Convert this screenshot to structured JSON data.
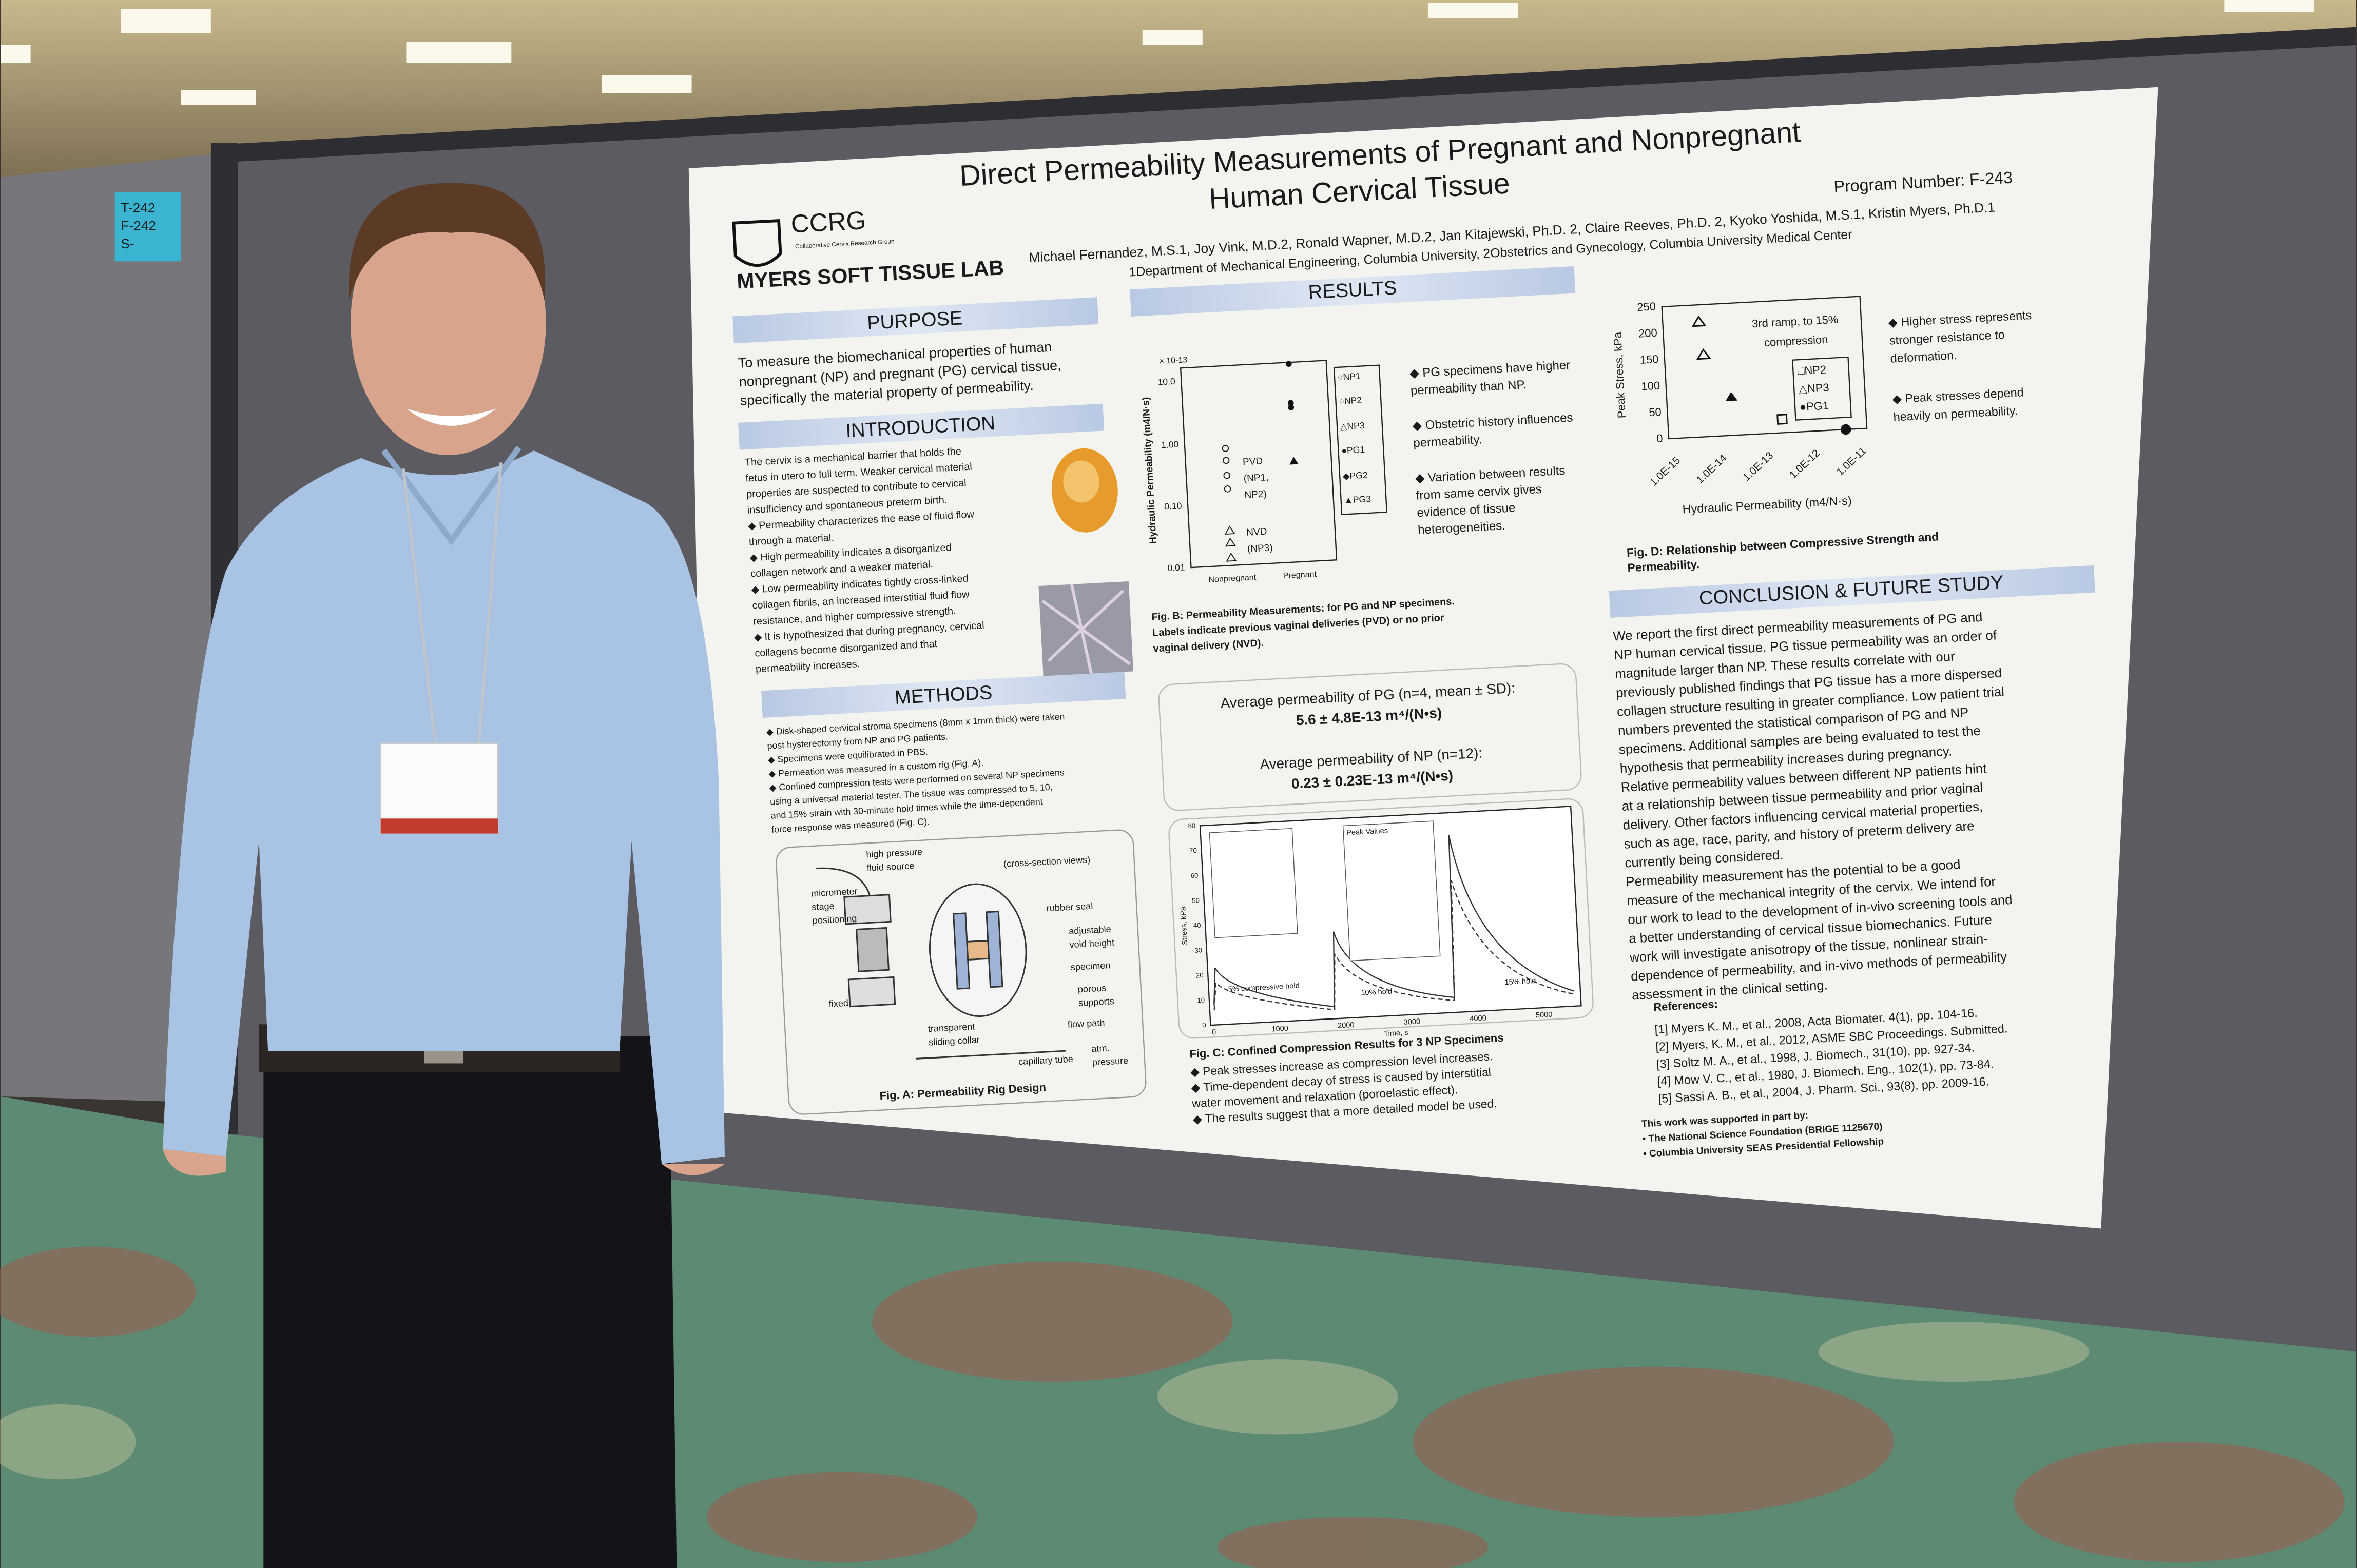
{
  "sticky_note": [
    "T-242",
    "F-242",
    "S-"
  ],
  "poster": {
    "title": [
      "Direct Permeability Measurements of Pregnant and Nonpregnant",
      "Human Cervical Tissue"
    ],
    "program_number": "Program Number: F-243",
    "logo_ccrg": "CCRG",
    "logo_ccrg_sub": "Collaborative Cervix Research Group",
    "logo_lab": "MYERS SOFT TISSUE LAB",
    "authors": "Michael Fernandez, M.S.1, Joy Vink, M.D.2, Ronald Wapner, M.D.2, Jan Kitajewski, Ph.D. 2, Claire Reeves, Ph.D. 2, Kyoko Yoshida, M.S.1, Kristin Myers, Ph.D.1",
    "affiliations": "1Department of Mechanical Engineering, Columbia University, 2Obstetrics and Gynecology, Columbia University Medical Center",
    "purpose": {
      "heading": "PURPOSE",
      "lines": [
        "To measure the biomechanical properties of human",
        "nonpregnant (NP) and pregnant (PG) cervical tissue,",
        "specifically the material property of permeability."
      ]
    },
    "introduction": {
      "heading": "INTRODUCTION",
      "lines": [
        "The cervix is a mechanical barrier that holds the",
        "fetus in utero to full term. Weaker cervical material",
        "properties are suspected to contribute to cervical",
        "insufficiency and spontaneous preterm birth.",
        "◆ Permeability characterizes the ease of fluid flow",
        "through a material.",
        "◆ High permeability indicates a disorganized",
        "collagen network and a weaker material.",
        "◆ Low permeability indicates tightly cross-linked",
        "collagen fibrils, an increased interstitial fluid flow",
        "resistance, and higher compressive strength.",
        "◆ It is hypothesized that during pregnancy, cervical",
        "collagens become disorganized and that",
        "permeability increases."
      ]
    },
    "methods": {
      "heading": "METHODS",
      "lines": [
        "◆ Disk-shaped cervical stroma specimens (8mm x 1mm thick) were taken",
        "post hysterectomy from NP and PG patients.",
        "◆ Specimens were equilibrated in PBS.",
        "◆ Permeation was measured in a custom rig (Fig. A).",
        "◆ Confined compression tests were performed on several NP specimens",
        "using a universal material tester. The tissue was compressed to 5, 10,",
        "and 15% strain with 30-minute hold times while the time-dependent",
        "force response was measured (Fig. C)."
      ]
    },
    "fig_a": {
      "labels": [
        "high pressure",
        "fluid source",
        "(cross-section views)",
        "micrometer",
        "stage",
        "positioning",
        "rubber seal",
        "adjustable",
        "void height",
        "specimen",
        "porous",
        "supports",
        "flow path",
        "fixed",
        "transparent",
        "sliding collar",
        "atm.",
        "pressure",
        "capillary tube"
      ],
      "caption": "Fig. A: Permeability Rig Design"
    },
    "results": {
      "heading": "RESULTS",
      "bullets": [
        [
          "◆ PG specimens have higher",
          "permeability than NP."
        ],
        [
          "◆ Obstetric history influences",
          "permeability."
        ],
        [
          "◆ Variation between results",
          "from same cervix gives",
          "evidence of tissue",
          "heterogeneities."
        ]
      ]
    },
    "fig_b": {
      "multiplier": "× 10-13",
      "y_label": "Hydraulic Permeability (m4/N·s)",
      "y_ticks": [
        "10.0",
        "1.00",
        "0.10",
        "0.01"
      ],
      "x_labels": [
        "Nonpregnant",
        "Pregnant"
      ],
      "annotations": [
        "PVD",
        "(NP1,",
        "NP2)",
        "NVD",
        "(NP3)"
      ],
      "legend": [
        "○NP1",
        "○NP2",
        "△NP3",
        "●PG1",
        "◆PG2",
        "▲PG3"
      ],
      "caption": [
        "Fig. B: Permeability Measurements: for PG and NP specimens.",
        "Labels indicate previous vaginal deliveries (PVD) or no prior",
        "vaginal delivery (NVD)."
      ]
    },
    "averages": [
      "Average permeability of PG (n=4, mean ± SD):",
      "5.6 ± 4.8E-13 m⁴/(N•s)",
      "Average permeability of NP (n=12):",
      "0.23 ± 0.23E-13 m⁴/(N•s)"
    ],
    "fig_c": {
      "y_label": "Stress, kPa",
      "x_label": "Time, s",
      "y_ticks": [
        80,
        70,
        60,
        50,
        40,
        30,
        20,
        10,
        0
      ],
      "x_ticks": [
        0,
        1000,
        2000,
        3000,
        4000,
        5000
      ],
      "annotations": [
        "Peak Values",
        "5% compressive hold",
        "10% hold",
        "15% hold"
      ],
      "caption": "Fig. C: Confined Compression Results for 3 NP Specimens",
      "bullets": [
        "◆ Peak stresses increase as compression level increases.",
        "◆ Time-dependent decay of stress is caused by interstitial",
        "water movement and relaxation (poroelastic effect).",
        "◆ The results suggest that a more detailed model be used."
      ]
    },
    "fig_d": {
      "y_label": "Peak Stress, kPa",
      "x_label": "Hydraulic Permeability (m4/N·s)",
      "y_ticks": [
        250,
        200,
        150,
        100,
        50,
        0
      ],
      "x_ticks": [
        "1.0E-15",
        "1.0E-14",
        "1.0E-13",
        "1.0E-12",
        "1.0E-11"
      ],
      "annotation": [
        "3rd ramp, to 15%",
        "compression"
      ],
      "legend": [
        "□NP2",
        "△NP3",
        "●PG1"
      ],
      "bullets": [
        [
          "◆ Higher stress represents",
          "stronger resistance to",
          "deformation."
        ],
        [
          "◆ Peak stresses depend",
          "heavily on permeability."
        ]
      ],
      "caption": [
        "Fig. D: Relationship between Compressive Strength and",
        "Permeability."
      ]
    },
    "conclusion": {
      "heading": "CONCLUSION & FUTURE STUDY",
      "lines": [
        "We report the first direct permeability measurements of PG and",
        "NP human cervical tissue. PG tissue permeability was an order of",
        "magnitude larger than NP. These results correlate with our",
        "previously published findings that PG tissue has a more dispersed",
        "collagen structure resulting in greater compliance. Low patient trial",
        "numbers prevented the statistical comparison of PG and NP",
        "specimens. Additional samples are being evaluated to test the",
        "hypothesis that permeability increases during pregnancy.",
        "Relative permeability values between different NP patients hint",
        "at a relationship between tissue permeability and prior vaginal",
        "delivery. Other factors influencing cervical material properties,",
        "such as age, race, parity, and history of preterm delivery are",
        "currently being considered.",
        "Permeability measurement has the potential to be a good",
        "measure of the mechanical integrity of the cervix. We intend for",
        "our work to lead to the development of in-vivo screening tools and",
        "a better understanding of cervical tissue biomechanics. Future",
        "work will investigate anisotropy of the tissue, nonlinear strain-",
        "dependence of permeability, and in-vivo methods of permeability",
        "assessment in the clinical setting."
      ]
    },
    "references": {
      "heading": "References:",
      "items": [
        "[1] Myers K. M., et al., 2008, Acta Biomater. 4(1), pp. 104-16.",
        "[2] Myers, K. M., et al., 2012, ASME SBC Proceedings. Submitted.",
        "[3] Soltz M. A., et al., 1998, J. Biomech., 31(10), pp. 927-34.",
        "[4] Mow V. C., et al., 1980, J. Biomech. Eng., 102(1), pp. 73-84.",
        "[5] Sassi A. B., et al., 2004, J. Pharm. Sci., 93(8), pp. 2009-16."
      ]
    },
    "funding": [
      "This work was supported in part by:",
      "• The National Science Foundation (BRIGE 1125670)",
      "• Columbia University SEAS Presidential Fellowship"
    ]
  }
}
